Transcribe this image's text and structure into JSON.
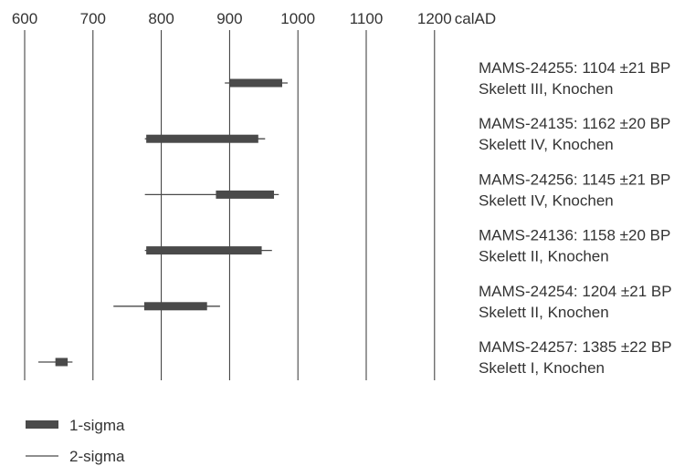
{
  "chart_data": {
    "type": "range",
    "x_axis": {
      "ticks": [
        600,
        700,
        800,
        900,
        1000,
        1100,
        1200
      ],
      "tick_labels": [
        "600",
        "700",
        "800",
        "900",
        "1000",
        "1100",
        "1200"
      ],
      "unit": "calAD",
      "range": [
        600,
        1200
      ],
      "gridlines": true
    },
    "samples": [
      {
        "label": "MAMS-24255: 1104 ±21 BP",
        "sublabel": "Skelett III, Knochen",
        "sigma1": [
          900,
          977
        ],
        "sigma2": [
          893,
          985
        ]
      },
      {
        "label": "MAMS-24135: 1162 ±20 BP",
        "sublabel": "Skelett IV, Knochen",
        "sigma1": [
          778,
          942
        ],
        "sigma2": [
          776,
          952
        ]
      },
      {
        "label": "MAMS-24256: 1145 ±21 BP",
        "sublabel": "Skelett IV, Knochen",
        "sigma1": [
          880,
          965
        ],
        "sigma2": [
          776,
          972
        ]
      },
      {
        "label": "MAMS-24136: 1158 ±20 BP",
        "sublabel": "Skelett II, Knochen",
        "sigma1": [
          778,
          947
        ],
        "sigma2": [
          776,
          962
        ]
      },
      {
        "label": "MAMS-24254: 1204 ±21 BP",
        "sublabel": "Skelett II, Knochen",
        "sigma1": [
          775,
          867
        ],
        "sigma2": [
          730,
          886
        ]
      },
      {
        "label": "MAMS-24257: 1385 ±22 BP",
        "sublabel": "Skelett I, Knochen",
        "sigma1": [
          645,
          663
        ],
        "sigma2": [
          620,
          670
        ]
      }
    ],
    "legend": [
      {
        "label": "1-sigma",
        "style": "thick-bar"
      },
      {
        "label": "2-sigma",
        "style": "thin-line"
      }
    ],
    "colors": {
      "bar": "#4a4a4a",
      "grid": "#333333",
      "text": "#333333"
    }
  }
}
